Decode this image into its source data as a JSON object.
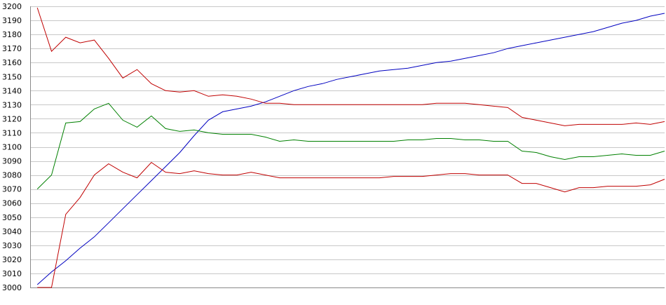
{
  "chart_data": {
    "type": "line",
    "title": "",
    "xlabel": "",
    "ylabel": "",
    "ylim": [
      3000,
      3200
    ],
    "yticks": [
      3000,
      3010,
      3020,
      3030,
      3040,
      3050,
      3060,
      3070,
      3080,
      3090,
      3100,
      3110,
      3120,
      3130,
      3140,
      3150,
      3160,
      3170,
      3180,
      3190,
      3200
    ],
    "grid": true,
    "legend": "none",
    "x": [
      1,
      3,
      5,
      7,
      9,
      11,
      13,
      15,
      17,
      19,
      21,
      23,
      25,
      27,
      29,
      31,
      33,
      35,
      37,
      39,
      41,
      43,
      45,
      47,
      49,
      51,
      53,
      55,
      57,
      59,
      61,
      63,
      65,
      67,
      69,
      71,
      73,
      75,
      77,
      79,
      81,
      83,
      85,
      87,
      89
    ],
    "series": [
      {
        "color": "#0000c0",
        "values": [
          3002,
          3011,
          3019,
          3028,
          3036,
          3046,
          3056,
          3066,
          3076,
          3086,
          3096,
          3108,
          3119,
          3125,
          3127,
          3129,
          3132,
          3136,
          3140,
          3143,
          3145,
          3148,
          3150,
          3152,
          3154,
          3155,
          3156,
          3158,
          3160,
          3161,
          3163,
          3165,
          3167,
          3170,
          3172,
          3174,
          3176,
          3178,
          3180,
          3182,
          3185,
          3188,
          3190,
          3193,
          3195
        ]
      },
      {
        "color": "#c00000",
        "values": [
          3199,
          3168,
          3178,
          3174,
          3176,
          3163,
          3149,
          3155,
          3145,
          3140,
          3139,
          3140,
          3136,
          3137,
          3136,
          3134,
          3131,
          3131,
          3130,
          3130,
          3130,
          3130,
          3130,
          3130,
          3130,
          3130,
          3130,
          3130,
          3131,
          3131,
          3131,
          3130,
          3129,
          3128,
          3121,
          3119,
          3117,
          3115,
          3116,
          3116,
          3116,
          3116,
          3117,
          3116,
          3118
        ]
      },
      {
        "color": "#008000",
        "values": [
          3070,
          3080,
          3117,
          3118,
          3127,
          3131,
          3119,
          3114,
          3122,
          3113,
          3111,
          3112,
          3110,
          3109,
          3109,
          3109,
          3107,
          3104,
          3105,
          3104,
          3104,
          3104,
          3104,
          3104,
          3104,
          3104,
          3105,
          3105,
          3106,
          3106,
          3105,
          3105,
          3104,
          3104,
          3097,
          3096,
          3093,
          3091,
          3093,
          3093,
          3094,
          3095,
          3094,
          3094,
          3097
        ]
      },
      {
        "color": "#c00000",
        "values": [
          3000,
          3000,
          3052,
          3064,
          3080,
          3088,
          3082,
          3078,
          3089,
          3082,
          3081,
          3083,
          3081,
          3080,
          3080,
          3082,
          3080,
          3078,
          3078,
          3078,
          3078,
          3078,
          3078,
          3078,
          3078,
          3079,
          3079,
          3079,
          3080,
          3081,
          3081,
          3080,
          3080,
          3080,
          3074,
          3074,
          3071,
          3068,
          3071,
          3071,
          3072,
          3072,
          3072,
          3073,
          3077
        ]
      }
    ]
  }
}
